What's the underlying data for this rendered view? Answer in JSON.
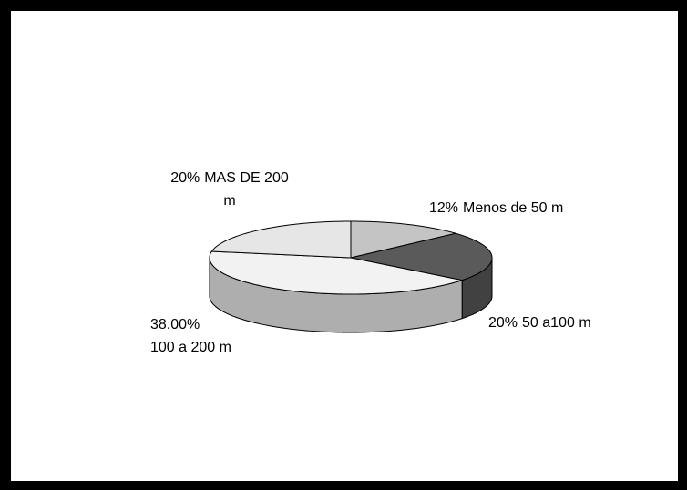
{
  "chart_data": {
    "type": "pie3d",
    "categories": [
      "Menos de 50 m",
      "50 a100 m",
      "100 a 200 m",
      "MAS DE 200 m"
    ],
    "values": [
      12,
      20,
      38,
      20
    ],
    "value_labels": [
      "12%",
      "20%",
      "38.00%",
      "20%"
    ],
    "colors": [
      "#c4c4c4",
      "#5a5a5a",
      "#f2f2f2",
      "#e6e6e6"
    ]
  }
}
